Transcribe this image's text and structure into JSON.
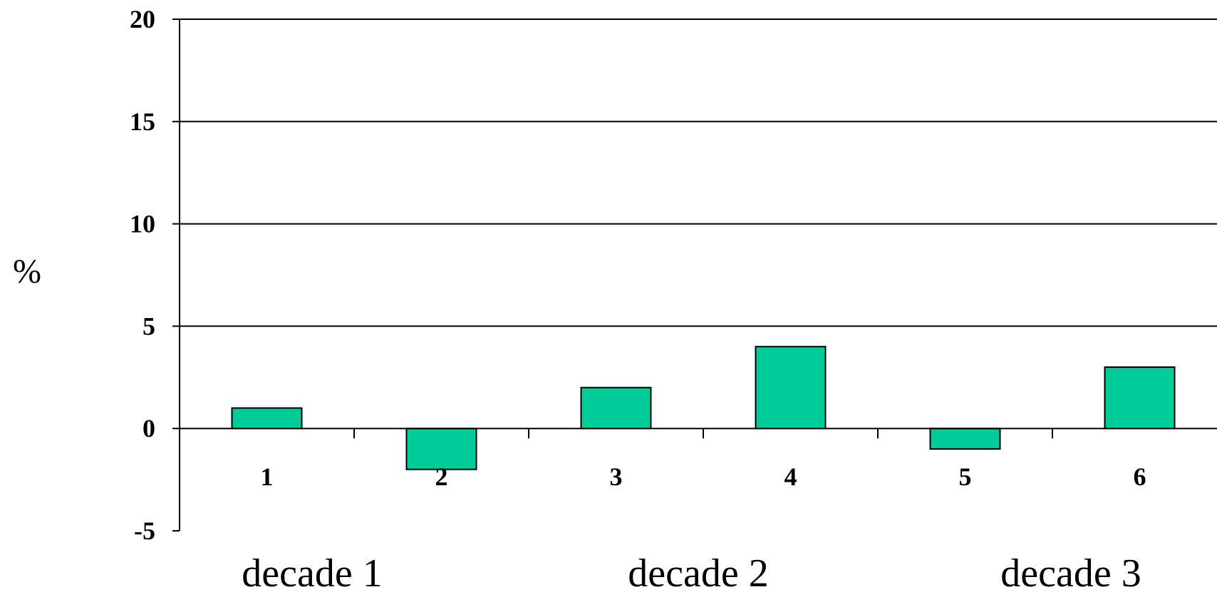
{
  "chart_data": {
    "type": "bar",
    "title": "",
    "xlabel": "",
    "ylabel": "%",
    "categories": [
      "1",
      "2",
      "3",
      "4",
      "5",
      "6"
    ],
    "values": [
      1,
      -2,
      2,
      4,
      -1,
      3
    ],
    "group_labels": [
      "decade 1",
      "decade 2",
      "decade 3"
    ],
    "ylim": [
      -5,
      20
    ],
    "yticks": [
      "20",
      "15",
      "10",
      "5",
      "0",
      "-5"
    ],
    "grid": true,
    "legend": "none",
    "bar_color": "#00CC99"
  }
}
